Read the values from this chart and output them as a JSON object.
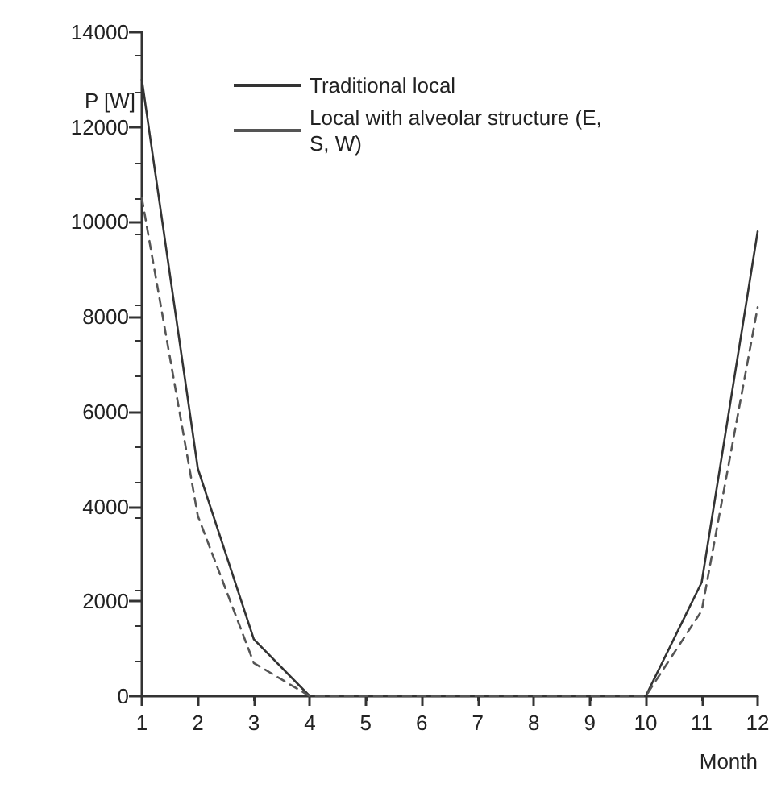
{
  "chart_data": {
    "type": "line",
    "xlabel": "Month",
    "ylabel": "P [W]",
    "x": [
      1,
      2,
      3,
      4,
      5,
      6,
      7,
      8,
      9,
      10,
      11,
      12
    ],
    "series": [
      {
        "name": "Traditional local",
        "color": "#333333",
        "line_style": "solid",
        "values": [
          13000,
          4800,
          1200,
          0,
          0,
          0,
          0,
          0,
          0,
          0,
          2400,
          9800
        ]
      },
      {
        "name": "Local with alveolar structure (E, S, W)",
        "color": "#555555",
        "line_style": "dashed",
        "values": [
          10500,
          3800,
          700,
          0,
          0,
          0,
          0,
          0,
          0,
          0,
          1800,
          8200
        ]
      }
    ],
    "xlim": [
      1,
      12
    ],
    "xticks": [
      1,
      2,
      3,
      4,
      5,
      6,
      7,
      8,
      9,
      10,
      11,
      12
    ],
    "ylim": [
      0,
      14000
    ],
    "yticks": [
      0,
      2000,
      4000,
      6000,
      8000,
      10000,
      12000,
      14000
    ],
    "grid": false,
    "legend": "top",
    "marker": "none"
  }
}
